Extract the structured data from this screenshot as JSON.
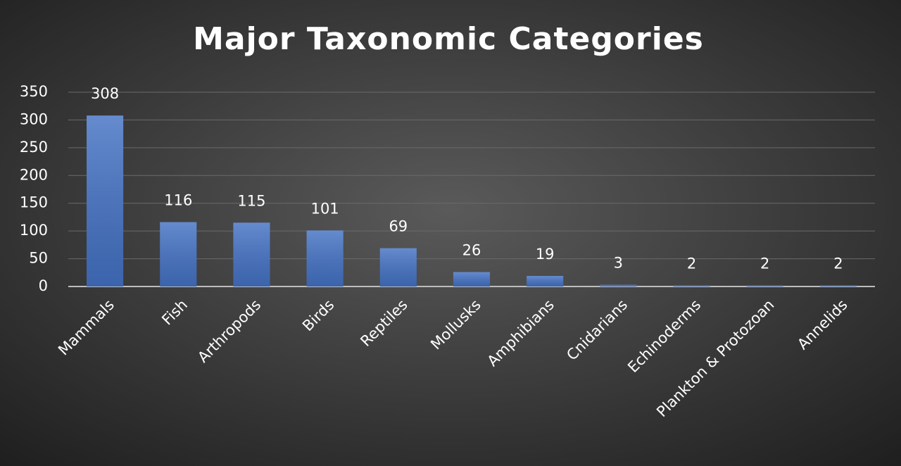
{
  "chart_data": {
    "type": "bar",
    "title": "Major Taxonomic Categories",
    "categories": [
      "Mammals",
      "Fish",
      "Arthropods",
      "Birds",
      "Reptiles",
      "Mollusks",
      "Amphibians",
      "Cnidarians",
      "Echinoderms",
      "Plankton & Protozoan",
      "Annelids"
    ],
    "values": [
      308,
      116,
      115,
      101,
      69,
      26,
      19,
      3,
      2,
      2,
      2
    ],
    "color": "#4472c4",
    "ylim": [
      0,
      350
    ],
    "yticks": [
      0,
      50,
      100,
      150,
      200,
      250,
      300,
      350
    ],
    "grid": true,
    "data_labels": true
  }
}
